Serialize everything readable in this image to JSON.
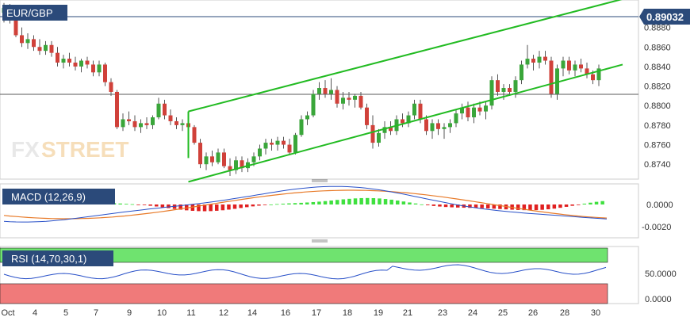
{
  "chart_data": [
    {
      "type": "candlestick",
      "symbol": "EUR/GBP",
      "current_price_label": "0.89032",
      "y_ticks": [
        "0.8880",
        "0.8860",
        "0.8840",
        "0.8820",
        "0.8800",
        "0.8780",
        "0.8760",
        "0.8740"
      ],
      "y_range": [
        0.8728,
        0.8904
      ],
      "horizontal_line": 0.8815,
      "trend_channel": {
        "upper": [
          [
            9.3,
            0.8794
          ],
          [
            31.2,
            0.8909
          ]
        ],
        "lower": [
          [
            9.3,
            0.8722
          ],
          [
            31.2,
            0.8842
          ]
        ]
      },
      "candles": [
        [
          0.0,
          0.8895,
          0.8905,
          0.8885,
          0.89
        ],
        [
          0.3,
          0.8898,
          0.8904,
          0.8884,
          0.8888
        ],
        [
          0.6,
          0.8888,
          0.8896,
          0.887,
          0.8872
        ],
        [
          0.9,
          0.8872,
          0.888,
          0.886,
          0.8864
        ],
        [
          1.2,
          0.8864,
          0.8874,
          0.8858,
          0.8868
        ],
        [
          1.5,
          0.8868,
          0.8872,
          0.8856,
          0.886
        ],
        [
          1.8,
          0.886,
          0.8868,
          0.8852,
          0.8856
        ],
        [
          2.1,
          0.8856,
          0.8866,
          0.8852,
          0.8862
        ],
        [
          2.4,
          0.8862,
          0.8866,
          0.885,
          0.8854
        ],
        [
          2.7,
          0.8854,
          0.886,
          0.884,
          0.8844
        ],
        [
          3.0,
          0.8844,
          0.8852,
          0.8838,
          0.8848
        ],
        [
          3.3,
          0.8848,
          0.8854,
          0.884,
          0.8844
        ],
        [
          3.6,
          0.8844,
          0.885,
          0.8836,
          0.884
        ],
        [
          3.9,
          0.884,
          0.8848,
          0.8834,
          0.8846
        ],
        [
          4.2,
          0.8846,
          0.885,
          0.8838,
          0.8842
        ],
        [
          4.5,
          0.8842,
          0.8846,
          0.883,
          0.8834
        ],
        [
          4.8,
          0.8834,
          0.8846,
          0.883,
          0.8842
        ],
        [
          5.1,
          0.8842,
          0.8844,
          0.882,
          0.8824
        ],
        [
          5.4,
          0.8824,
          0.8828,
          0.881,
          0.8814
        ],
        [
          5.7,
          0.8814,
          0.8816,
          0.8776,
          0.8778
        ],
        [
          6.0,
          0.8778,
          0.8792,
          0.8774,
          0.8786
        ],
        [
          6.3,
          0.8786,
          0.8794,
          0.878,
          0.8784
        ],
        [
          6.6,
          0.8784,
          0.879,
          0.8774,
          0.8778
        ],
        [
          6.9,
          0.8778,
          0.8786,
          0.8772,
          0.8782
        ],
        [
          7.2,
          0.8782,
          0.8788,
          0.8776,
          0.878
        ],
        [
          7.5,
          0.878,
          0.879,
          0.8776,
          0.8788
        ],
        [
          7.8,
          0.8788,
          0.8808,
          0.8786,
          0.8802
        ],
        [
          8.1,
          0.8802,
          0.8806,
          0.8786,
          0.879
        ],
        [
          8.4,
          0.879,
          0.8796,
          0.878,
          0.8784
        ],
        [
          8.7,
          0.8784,
          0.8788,
          0.8776,
          0.878
        ],
        [
          9.0,
          0.878,
          0.8786,
          0.8774,
          0.8782
        ],
        [
          9.3,
          0.8782,
          0.8794,
          0.8776,
          0.8778
        ],
        [
          9.6,
          0.8778,
          0.878,
          0.876,
          0.8762
        ],
        [
          9.9,
          0.8762,
          0.8766,
          0.8736,
          0.874
        ],
        [
          10.2,
          0.874,
          0.8752,
          0.8734,
          0.8748
        ],
        [
          10.5,
          0.8748,
          0.8754,
          0.8738,
          0.8742
        ],
        [
          10.8,
          0.8742,
          0.8756,
          0.874,
          0.8752
        ],
        [
          11.1,
          0.8752,
          0.8756,
          0.8736,
          0.8738
        ],
        [
          11.4,
          0.8738,
          0.8746,
          0.8728,
          0.8734
        ],
        [
          11.7,
          0.8734,
          0.8748,
          0.873,
          0.8744
        ],
        [
          12.0,
          0.8744,
          0.8748,
          0.8732,
          0.8736
        ],
        [
          12.3,
          0.8736,
          0.8746,
          0.8732,
          0.8742
        ],
        [
          12.6,
          0.8742,
          0.8752,
          0.8738,
          0.8748
        ],
        [
          12.9,
          0.8748,
          0.876,
          0.8744,
          0.8756
        ],
        [
          13.2,
          0.8756,
          0.8766,
          0.875,
          0.8762
        ],
        [
          13.5,
          0.8762,
          0.8766,
          0.8754,
          0.876
        ],
        [
          13.8,
          0.876,
          0.8768,
          0.8754,
          0.8764
        ],
        [
          14.1,
          0.8764,
          0.8768,
          0.8756,
          0.876
        ],
        [
          14.4,
          0.876,
          0.8766,
          0.875,
          0.8752
        ],
        [
          14.7,
          0.8752,
          0.8772,
          0.875,
          0.877
        ],
        [
          15.0,
          0.877,
          0.879,
          0.8768,
          0.8786
        ],
        [
          15.3,
          0.8786,
          0.8794,
          0.878,
          0.879
        ],
        [
          15.6,
          0.879,
          0.8816,
          0.8788,
          0.8812
        ],
        [
          15.9,
          0.8812,
          0.8824,
          0.8806,
          0.8818
        ],
        [
          16.2,
          0.8818,
          0.8826,
          0.8808,
          0.8812
        ],
        [
          16.5,
          0.8812,
          0.8828,
          0.8806,
          0.8816
        ],
        [
          16.8,
          0.8816,
          0.882,
          0.8798,
          0.8802
        ],
        [
          17.1,
          0.8802,
          0.8814,
          0.8796,
          0.8808
        ],
        [
          17.4,
          0.8808,
          0.8814,
          0.88,
          0.8806
        ],
        [
          17.7,
          0.8806,
          0.8812,
          0.8798,
          0.881
        ],
        [
          18.0,
          0.881,
          0.8814,
          0.8796,
          0.8798
        ],
        [
          18.3,
          0.8798,
          0.8802,
          0.8776,
          0.878
        ],
        [
          18.6,
          0.878,
          0.879,
          0.8756,
          0.8762
        ],
        [
          18.9,
          0.8762,
          0.8776,
          0.8758,
          0.8772
        ],
        [
          19.2,
          0.8772,
          0.8784,
          0.8766,
          0.8778
        ],
        [
          19.5,
          0.8778,
          0.8784,
          0.877,
          0.8774
        ],
        [
          19.8,
          0.8774,
          0.879,
          0.877,
          0.8786
        ],
        [
          20.1,
          0.8786,
          0.8792,
          0.8778,
          0.8782
        ],
        [
          20.4,
          0.8782,
          0.8794,
          0.8778,
          0.879
        ],
        [
          20.7,
          0.879,
          0.8806,
          0.8786,
          0.8802
        ],
        [
          21.0,
          0.8802,
          0.8806,
          0.8782,
          0.8786
        ],
        [
          21.3,
          0.8786,
          0.879,
          0.877,
          0.8774
        ],
        [
          21.6,
          0.8774,
          0.8786,
          0.8766,
          0.8782
        ],
        [
          21.9,
          0.8782,
          0.8786,
          0.877,
          0.8776
        ],
        [
          22.2,
          0.8776,
          0.8782,
          0.8766,
          0.8778
        ],
        [
          22.5,
          0.8778,
          0.8786,
          0.8772,
          0.8782
        ],
        [
          22.8,
          0.8782,
          0.8796,
          0.8778,
          0.8792
        ],
        [
          23.1,
          0.8792,
          0.8802,
          0.8786,
          0.8798
        ],
        [
          23.4,
          0.8798,
          0.8804,
          0.8784,
          0.8788
        ],
        [
          23.7,
          0.8788,
          0.8802,
          0.8782,
          0.8798
        ],
        [
          24.0,
          0.8798,
          0.8804,
          0.879,
          0.8794
        ],
        [
          24.3,
          0.8794,
          0.8804,
          0.8786,
          0.88
        ],
        [
          24.6,
          0.88,
          0.883,
          0.8796,
          0.8826
        ],
        [
          24.9,
          0.8826,
          0.8832,
          0.881,
          0.8814
        ],
        [
          25.2,
          0.8814,
          0.8822,
          0.8806,
          0.8818
        ],
        [
          25.5,
          0.8818,
          0.8822,
          0.881,
          0.8814
        ],
        [
          25.8,
          0.8814,
          0.883,
          0.8808,
          0.8826
        ],
        [
          26.1,
          0.8826,
          0.8846,
          0.8822,
          0.8842
        ],
        [
          26.4,
          0.8842,
          0.8862,
          0.8838,
          0.8848
        ],
        [
          26.7,
          0.8848,
          0.8852,
          0.8836,
          0.8844
        ],
        [
          27.0,
          0.8844,
          0.8856,
          0.8838,
          0.885
        ],
        [
          27.3,
          0.885,
          0.8856,
          0.8842,
          0.8846
        ],
        [
          27.6,
          0.8846,
          0.885,
          0.8808,
          0.8812
        ],
        [
          27.9,
          0.8812,
          0.8842,
          0.8806,
          0.8838
        ],
        [
          28.2,
          0.8838,
          0.885,
          0.883,
          0.8846
        ],
        [
          28.5,
          0.8846,
          0.885,
          0.8832,
          0.8836
        ],
        [
          28.8,
          0.8836,
          0.8846,
          0.883,
          0.8842
        ],
        [
          29.1,
          0.8842,
          0.8848,
          0.8834,
          0.8838
        ],
        [
          29.4,
          0.8838,
          0.8844,
          0.8828,
          0.8832
        ],
        [
          29.7,
          0.8832,
          0.8836,
          0.8822,
          0.8826
        ],
        [
          30.0,
          0.8826,
          0.8842,
          0.882,
          0.8838
        ]
      ]
    },
    {
      "type": "macd",
      "label": "MACD (12,26,9)",
      "y_ticks": [
        "0.0000",
        "-0.0020"
      ]
    },
    {
      "type": "rsi",
      "label": "RSI (14,70,30,1)",
      "y_ticks": [
        "50.0000",
        "0.0000"
      ]
    }
  ],
  "x_axis_labels": [
    "Oct",
    "4",
    "5",
    "7",
    "9",
    "10",
    "11",
    "12",
    "14",
    "16",
    "17",
    "18",
    "19",
    "21",
    "23",
    "24",
    "25",
    "26",
    "28",
    "30"
  ],
  "watermark": "FXSTREET",
  "colors": {
    "bull": "#3aa63a",
    "bear": "#d0413a",
    "channel": "#22bb22",
    "label_bg": "#2b4a7a"
  }
}
